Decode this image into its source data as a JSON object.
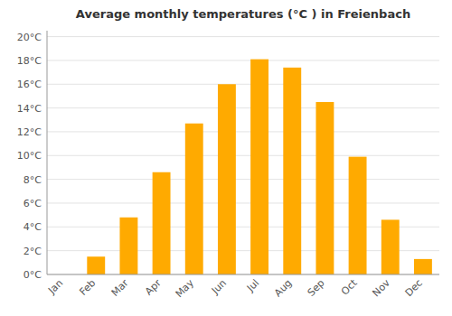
{
  "chart_data": {
    "type": "bar",
    "title": "Average monthly temperatures (°C ) in Freienbach",
    "categories": [
      "Jan",
      "Feb",
      "Mar",
      "Apr",
      "May",
      "Jun",
      "Jul",
      "Aug",
      "Sep",
      "Oct",
      "Nov",
      "Dec"
    ],
    "values": [
      0.0,
      1.5,
      4.8,
      8.6,
      12.7,
      16.0,
      18.1,
      17.4,
      14.5,
      9.9,
      4.6,
      1.3
    ],
    "color": "#FFAA00",
    "ylim": [
      0,
      20.5
    ],
    "yticks": [
      {
        "value": 0,
        "label": "0°C"
      },
      {
        "value": 2,
        "label": "2°C"
      },
      {
        "value": 4,
        "label": "4°C"
      },
      {
        "value": 6,
        "label": "6°C"
      },
      {
        "value": 8,
        "label": "8°C"
      },
      {
        "value": 10,
        "label": "10°C"
      },
      {
        "value": 12,
        "label": "12°C"
      },
      {
        "value": 14,
        "label": "14°C"
      },
      {
        "value": 16,
        "label": "16°C"
      },
      {
        "value": 18,
        "label": "18°C"
      },
      {
        "value": 20,
        "label": "20°C"
      }
    ],
    "grid": true
  }
}
